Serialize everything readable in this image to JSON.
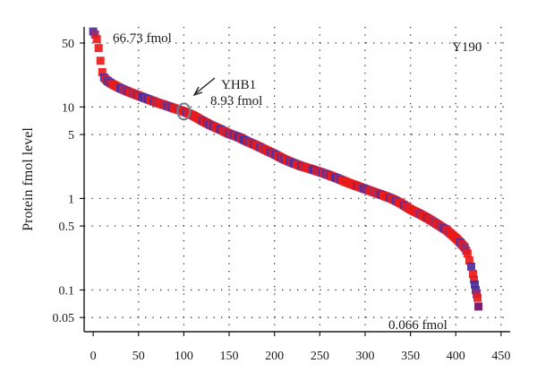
{
  "chart_data": {
    "type": "scatter",
    "title": "",
    "xlabel": "",
    "ylabel": "Protein fmol level",
    "y_scale": "log",
    "xlim": [
      -10,
      460
    ],
    "ylim": [
      0.035,
      75
    ],
    "x_ticks": [
      0,
      50,
      100,
      150,
      200,
      250,
      300,
      350,
      400,
      450
    ],
    "x_tick_labels": [
      "0",
      "50",
      "100",
      "150",
      "200",
      "250",
      "300",
      "350",
      "400",
      "450"
    ],
    "y_ticks": [
      50,
      10,
      5,
      1,
      0.5,
      0.1,
      0.05
    ],
    "y_tick_labels": [
      "50",
      "10",
      "5",
      "1",
      "0.5",
      "0.1",
      "0.05"
    ],
    "grid": true,
    "legend": "none",
    "colors": {
      "high": "#e81b1b",
      "low": "#4a2fa0",
      "highlight": "#6f7f8f"
    },
    "panel_label": "Y190",
    "series": [
      {
        "points": [
          [
            0,
            66.73
          ],
          [
            2,
            62
          ],
          [
            4,
            55
          ],
          [
            6,
            44
          ],
          [
            8,
            32
          ],
          [
            10,
            24
          ],
          [
            12,
            21
          ],
          [
            15,
            19.5
          ],
          [
            20,
            18
          ],
          [
            30,
            16
          ],
          [
            40,
            14.5
          ],
          [
            50,
            13.3
          ],
          [
            60,
            12.2
          ],
          [
            70,
            11.2
          ],
          [
            80,
            10.4
          ],
          [
            90,
            9.6
          ],
          [
            100,
            8.93
          ],
          [
            110,
            8.1
          ],
          [
            120,
            7.1
          ],
          [
            130,
            6.3
          ],
          [
            140,
            5.7
          ],
          [
            150,
            5.1
          ],
          [
            160,
            4.7
          ],
          [
            170,
            4.2
          ],
          [
            180,
            3.8
          ],
          [
            190,
            3.4
          ],
          [
            200,
            3.05
          ],
          [
            210,
            2.7
          ],
          [
            220,
            2.45
          ],
          [
            230,
            2.25
          ],
          [
            240,
            2.1
          ],
          [
            250,
            1.95
          ],
          [
            260,
            1.8
          ],
          [
            270,
            1.65
          ],
          [
            280,
            1.5
          ],
          [
            290,
            1.38
          ],
          [
            300,
            1.27
          ],
          [
            310,
            1.17
          ],
          [
            320,
            1.08
          ],
          [
            330,
            0.99
          ],
          [
            340,
            0.88
          ],
          [
            350,
            0.76
          ],
          [
            360,
            0.68
          ],
          [
            370,
            0.6
          ],
          [
            380,
            0.52
          ],
          [
            390,
            0.45
          ],
          [
            400,
            0.37
          ],
          [
            405,
            0.33
          ],
          [
            410,
            0.29
          ],
          [
            413,
            0.25
          ],
          [
            415,
            0.21
          ],
          [
            417,
            0.18
          ],
          [
            419,
            0.15
          ],
          [
            420,
            0.13
          ],
          [
            421,
            0.115
          ],
          [
            422,
            0.1
          ],
          [
            423,
            0.09
          ],
          [
            424,
            0.082
          ]
        ]
      },
      {
        "points": [
          [
            425,
            0.066
          ]
        ]
      }
    ],
    "annotations": [
      {
        "text": "66.73 fmol",
        "x": 0,
        "y": 66.73
      },
      {
        "text": "YHB1",
        "x": 100,
        "y": 8.93
      },
      {
        "text": "8.93 fmol",
        "x": 100,
        "y": 8.93
      },
      {
        "text": "0.066 fmol",
        "x": 425,
        "y": 0.066
      }
    ]
  }
}
